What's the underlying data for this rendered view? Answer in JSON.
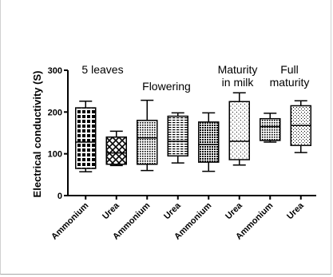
{
  "chart_data": {
    "type": "box",
    "title": "",
    "xlabel": "",
    "ylabel": "Electrical conductivity (S)",
    "ylim": [
      0,
      300
    ],
    "yticks": [
      0,
      100,
      200,
      300
    ],
    "categories": [
      "Ammonium",
      "Urea",
      "Ammonium",
      "Urea",
      "Ammonium",
      "Urea",
      "Ammonium",
      "Urea"
    ],
    "boxes": [
      {
        "category": "Ammonium",
        "min": 57,
        "q1": 65,
        "median": 128,
        "q3": 210,
        "max": 226,
        "pattern": "grid"
      },
      {
        "category": "Urea",
        "min": 72,
        "q1": 75,
        "median": 102,
        "q3": 140,
        "max": 154,
        "pattern": "crosshatch"
      },
      {
        "category": "Ammonium",
        "min": 60,
        "q1": 75,
        "median": 138,
        "q3": 180,
        "max": 228,
        "pattern": "dense-dots"
      },
      {
        "category": "Urea",
        "min": 78,
        "q1": 95,
        "median": 130,
        "q3": 190,
        "max": 198,
        "pattern": "stripes"
      },
      {
        "category": "Ammonium",
        "min": 58,
        "q1": 80,
        "median": 122,
        "q3": 176,
        "max": 198,
        "pattern": "heavy-dots"
      },
      {
        "category": "Urea",
        "min": 73,
        "q1": 86,
        "median": 130,
        "q3": 225,
        "max": 246,
        "pattern": "sparse-dots"
      },
      {
        "category": "Ammonium",
        "min": 128,
        "q1": 132,
        "median": 165,
        "q3": 184,
        "max": 197,
        "pattern": "dense-dots"
      },
      {
        "category": "Urea",
        "min": 103,
        "q1": 120,
        "median": 168,
        "q3": 215,
        "max": 227,
        "pattern": "fine-dots"
      }
    ],
    "group_labels": [
      {
        "lines": [
          "5 leaves"
        ],
        "position": "above boxes 1-2"
      },
      {
        "lines": [
          "Flowering"
        ],
        "position": "above boxes 3-4"
      },
      {
        "lines": [
          "Maturity",
          "in milk"
        ],
        "position": "above boxes 5-6"
      },
      {
        "lines": [
          "Full",
          "maturity"
        ],
        "position": "above boxes 7-8"
      }
    ],
    "grid": false,
    "legend": "none"
  }
}
